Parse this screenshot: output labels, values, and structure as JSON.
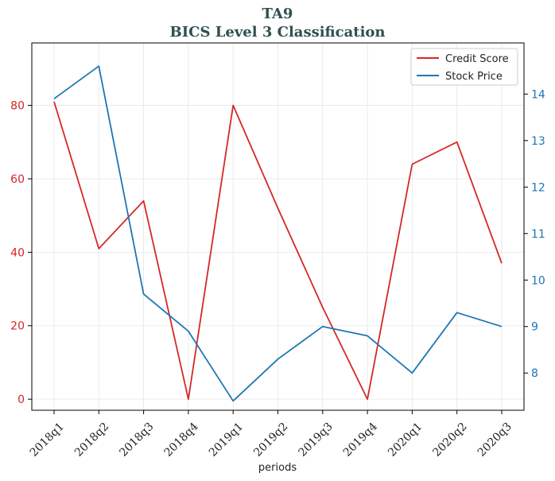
{
  "chart_data": {
    "type": "line",
    "title": "TA9",
    "subtitle": "BICS Level 3 Classification",
    "xlabel": "periods",
    "categories": [
      "2018q1",
      "2018q2",
      "2018q3",
      "2018q4",
      "2019q1",
      "2019q2",
      "2019q3",
      "2019q4",
      "2020q1",
      "2020q2",
      "2020q3"
    ],
    "series": [
      {
        "name": "Credit Score",
        "axis": "left",
        "color": "#d62728",
        "values": [
          81,
          41,
          54,
          0,
          80,
          52,
          25,
          0,
          64,
          70,
          37
        ]
      },
      {
        "name": "Stock Price",
        "axis": "right",
        "color": "#1f77b4",
        "values": [
          13.9,
          14.6,
          9.7,
          8.9,
          7.4,
          8.3,
          9.0,
          8.8,
          8.0,
          9.3,
          9.0
        ]
      }
    ],
    "y_left": {
      "ylim": [
        -3,
        97
      ],
      "ticks": [
        0,
        20,
        40,
        60,
        80
      ],
      "color": "#d62728"
    },
    "y_right": {
      "ylim": [
        7.2,
        15.1
      ],
      "ticks": [
        8,
        9,
        10,
        11,
        12,
        13,
        14
      ],
      "color": "#1f77b4"
    },
    "grid": true,
    "legend": "top-right"
  }
}
